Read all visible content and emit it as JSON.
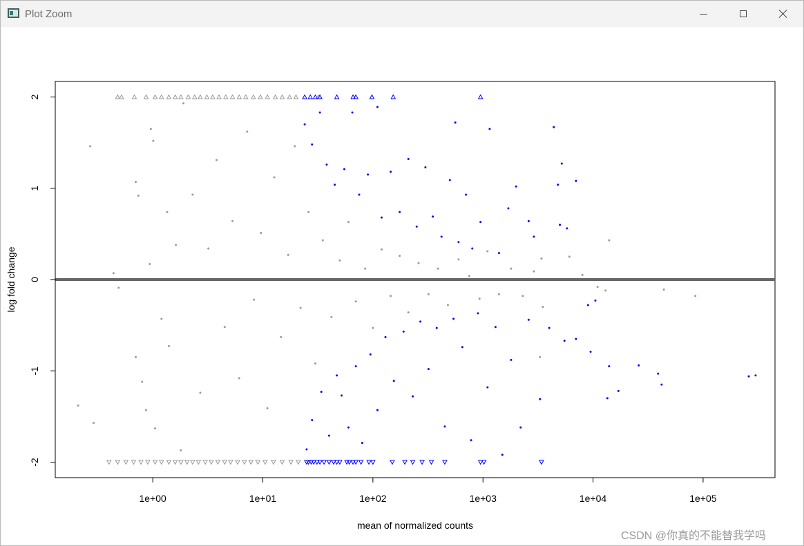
{
  "window": {
    "title": "Plot Zoom",
    "icons": {
      "app": "plot-window-icon",
      "minimize": "minimize-icon",
      "maximize": "maximize-icon",
      "close": "close-icon"
    }
  },
  "watermark": "CSDN @你真的不能替我学吗",
  "chart_data": {
    "type": "scatter",
    "title": "",
    "xlabel": "mean of normalized counts",
    "ylabel": "log fold change",
    "x_scale": "log10",
    "xlim": [
      0.13,
      450000
    ],
    "ylim": [
      -2.17,
      2.17
    ],
    "x_ticks": [
      1,
      10,
      100,
      1000,
      10000,
      100000
    ],
    "x_tick_labels": [
      "1e+00",
      "1e+01",
      "1e+02",
      "1e+03",
      "1e+04",
      "1e+05"
    ],
    "y_ticks": [
      -2,
      -1,
      0,
      1,
      2
    ],
    "y_tick_labels": [
      "-2",
      "-1",
      "0",
      "1",
      "2"
    ],
    "reference_line": {
      "y": 0,
      "color": "#666666"
    },
    "colors": {
      "not_significant": "#999999",
      "significant": "#0000ff"
    },
    "clip_markers": {
      "above": "up-triangle",
      "below": "down-triangle",
      "value": 2
    },
    "series": [
      {
        "key": "not_significant",
        "color": "#999999",
        "points": [
          [
            0.21,
            -1.38
          ],
          [
            0.27,
            1.46
          ],
          [
            0.29,
            -1.57
          ],
          [
            0.44,
            0.07
          ],
          [
            0.49,
            -0.09
          ],
          [
            0.7,
            1.07
          ],
          [
            0.7,
            -0.85
          ],
          [
            0.74,
            0.92
          ],
          [
            0.8,
            -1.12
          ],
          [
            0.87,
            -1.43
          ],
          [
            0.94,
            0.17
          ],
          [
            0.96,
            1.65
          ],
          [
            1.01,
            1.52
          ],
          [
            1.05,
            -1.63
          ],
          [
            1.2,
            -0.43
          ],
          [
            1.35,
            0.74
          ],
          [
            1.4,
            -0.73
          ],
          [
            1.62,
            0.38
          ],
          [
            1.8,
            -1.87
          ],
          [
            1.9,
            1.93
          ],
          [
            2.3,
            0.93
          ],
          [
            2.7,
            -1.24
          ],
          [
            3.2,
            0.34
          ],
          [
            3.8,
            1.31
          ],
          [
            4.5,
            -0.52
          ],
          [
            5.3,
            0.64
          ],
          [
            6.1,
            -1.08
          ],
          [
            7.2,
            1.62
          ],
          [
            8.3,
            -0.22
          ],
          [
            9.6,
            0.51
          ],
          [
            11.0,
            -1.41
          ],
          [
            12.7,
            1.12
          ],
          [
            14.6,
            -0.63
          ],
          [
            17.0,
            0.27
          ],
          [
            19.5,
            1.46
          ],
          [
            22.0,
            -0.31
          ],
          [
            26.0,
            0.74
          ],
          [
            30.0,
            -0.92
          ],
          [
            35.0,
            0.43
          ],
          [
            42.0,
            -0.41
          ],
          [
            50.0,
            0.21
          ],
          [
            60.0,
            0.63
          ],
          [
            70.0,
            -0.24
          ],
          [
            85.0,
            0.12
          ],
          [
            100.0,
            -0.53
          ],
          [
            120.0,
            0.33
          ],
          [
            145.0,
            -0.18
          ],
          [
            175.0,
            0.26
          ],
          [
            210.0,
            -0.36
          ],
          [
            260.0,
            0.18
          ],
          [
            320.0,
            -0.16
          ],
          [
            390.0,
            0.12
          ],
          [
            480.0,
            -0.28
          ],
          [
            600.0,
            0.22
          ],
          [
            750.0,
            0.04
          ],
          [
            930.0,
            -0.21
          ],
          [
            1100.0,
            0.31
          ],
          [
            1400.0,
            -0.16
          ],
          [
            1800.0,
            0.12
          ],
          [
            2300.0,
            -0.18
          ],
          [
            2900.0,
            0.09
          ],
          [
            3400.0,
            0.23
          ],
          [
            3500.0,
            -0.3
          ],
          [
            3300.0,
            -0.85
          ],
          [
            6100.0,
            0.25
          ],
          [
            8000.0,
            0.05
          ],
          [
            11000.0,
            -0.08
          ],
          [
            13000.0,
            -0.12
          ],
          [
            14000.0,
            0.43
          ],
          [
            44000.0,
            -0.11
          ],
          [
            85000.0,
            -0.18
          ]
        ]
      },
      {
        "key": "significant",
        "color": "#0000ff",
        "points": [
          [
            24.0,
            1.7
          ],
          [
            28.0,
            1.48
          ],
          [
            33.0,
            1.83
          ],
          [
            38.0,
            1.26
          ],
          [
            45.0,
            1.04
          ],
          [
            55.0,
            1.21
          ],
          [
            65.0,
            1.83
          ],
          [
            75.0,
            0.93
          ],
          [
            90.0,
            1.15
          ],
          [
            110.0,
            1.89
          ],
          [
            120.0,
            0.68
          ],
          [
            145.0,
            1.18
          ],
          [
            175.0,
            0.74
          ],
          [
            210.0,
            1.32
          ],
          [
            250.0,
            0.58
          ],
          [
            300.0,
            1.23
          ],
          [
            350.0,
            0.69
          ],
          [
            420.0,
            0.47
          ],
          [
            500.0,
            1.09
          ],
          [
            560.0,
            1.72
          ],
          [
            600.0,
            0.41
          ],
          [
            700.0,
            0.93
          ],
          [
            800.0,
            0.34
          ],
          [
            950.0,
            0.63
          ],
          [
            1150.0,
            1.65
          ],
          [
            1400.0,
            0.29
          ],
          [
            1700.0,
            0.78
          ],
          [
            2000.0,
            1.02
          ],
          [
            2600.0,
            0.64
          ],
          [
            2900.0,
            0.47
          ],
          [
            4400.0,
            1.67
          ],
          [
            4800.0,
            1.04
          ],
          [
            5200.0,
            1.27
          ],
          [
            5800.0,
            0.56
          ],
          [
            7000.0,
            1.08
          ],
          [
            5000.0,
            0.6
          ],
          [
            25.0,
            -1.86
          ],
          [
            28.0,
            -1.54
          ],
          [
            34.0,
            -1.23
          ],
          [
            40.0,
            -1.71
          ],
          [
            47.0,
            -1.05
          ],
          [
            52.0,
            -1.27
          ],
          [
            60.0,
            -1.62
          ],
          [
            70.0,
            -0.95
          ],
          [
            80.0,
            -1.79
          ],
          [
            95.0,
            -0.82
          ],
          [
            110.0,
            -1.43
          ],
          [
            130.0,
            -0.63
          ],
          [
            155.0,
            -1.11
          ],
          [
            190.0,
            -0.57
          ],
          [
            230.0,
            -1.28
          ],
          [
            270.0,
            -0.46
          ],
          [
            320.0,
            -0.98
          ],
          [
            380.0,
            -0.53
          ],
          [
            450.0,
            -1.61
          ],
          [
            540.0,
            -0.43
          ],
          [
            650.0,
            -0.74
          ],
          [
            780.0,
            -1.76
          ],
          [
            900.0,
            -0.37
          ],
          [
            1100.0,
            -1.18
          ],
          [
            1300.0,
            -0.52
          ],
          [
            1500.0,
            -1.92
          ],
          [
            1800.0,
            -0.88
          ],
          [
            2200.0,
            -1.62
          ],
          [
            2600.0,
            -0.44
          ],
          [
            3300.0,
            -1.31
          ],
          [
            4000.0,
            -0.53
          ],
          [
            5500.0,
            -0.67
          ],
          [
            7000.0,
            -0.65
          ],
          [
            9500.0,
            -0.79
          ],
          [
            14000.0,
            -0.95
          ],
          [
            26000.0,
            -0.94
          ],
          [
            39000.0,
            -1.03
          ],
          [
            42000.0,
            -1.15
          ],
          [
            17000.0,
            -1.22
          ],
          [
            13500.0,
            -1.3
          ],
          [
            260000.0,
            -1.06
          ],
          [
            300000.0,
            -1.05
          ],
          [
            9000.0,
            -0.28
          ],
          [
            10500.0,
            -0.23
          ]
        ]
      }
    ],
    "clipped_high": {
      "not_significant": [
        0.48,
        0.52,
        0.68,
        0.87,
        1.05,
        1.2,
        1.4,
        1.6,
        1.8,
        2.1,
        2.4,
        2.7,
        3.1,
        3.5,
        4.0,
        4.6,
        5.3,
        6.1,
        7.0,
        8.2,
        9.5,
        11.0,
        13.0,
        15.0,
        17.5,
        20.0,
        32.0
      ],
      "significant": [
        24.0,
        27.0,
        30.0,
        33.0,
        47.0,
        66.0,
        70.0,
        98.0,
        153.0,
        950.0
      ]
    },
    "clipped_low": {
      "not_significant": [
        0.4,
        0.48,
        0.57,
        0.67,
        0.78,
        0.9,
        1.05,
        1.2,
        1.4,
        1.6,
        1.8,
        2.05,
        2.3,
        2.6,
        3.0,
        3.4,
        3.9,
        4.5,
        5.1,
        5.9,
        6.8,
        7.8,
        9.0,
        10.5,
        12.5,
        15.0,
        18.0,
        21.0
      ],
      "significant": [
        25.0,
        26.0,
        27.5,
        29.0,
        31.0,
        33.0,
        36.0,
        40.0,
        44.0,
        47.0,
        50.0,
        58.0,
        61.0,
        66.0,
        70.0,
        78.0,
        92.0,
        100.0,
        150.0,
        195.0,
        230.0,
        280.0,
        340.0,
        450.0,
        950.0,
        1020.0,
        3400.0
      ]
    }
  }
}
